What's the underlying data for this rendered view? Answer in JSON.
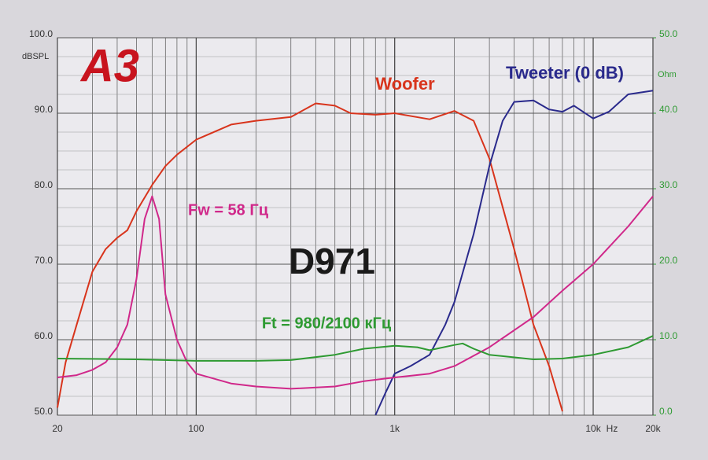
{
  "chart_data": {
    "type": "line",
    "logo": "A3",
    "title": "D971",
    "y_label": "dBSPL",
    "y2_label": "Ohm",
    "x_label": "Hz",
    "xlog": true,
    "grid": true,
    "xlim": [
      20,
      20000
    ],
    "xticks": [
      20,
      100,
      {
        "value": 1000,
        "label": "1k"
      },
      {
        "value": 10000,
        "label": "10k"
      },
      {
        "value": 20000,
        "label": "20k"
      }
    ],
    "ylim": [
      50,
      100
    ],
    "yticks": [
      {
        "value": 50,
        "label": "50.0"
      },
      {
        "value": 60,
        "label": "60.0"
      },
      {
        "value": 70,
        "label": "70.0"
      },
      {
        "value": 80,
        "label": "80.0"
      },
      {
        "value": 90,
        "label": "90.0"
      },
      {
        "value": 100,
        "label": "100.0"
      }
    ],
    "y2lim": [
      0,
      50
    ],
    "y2ticks": [
      {
        "value": 0,
        "label": "0.0"
      },
      {
        "value": 10,
        "label": "10.0"
      },
      {
        "value": 20,
        "label": "20.0"
      },
      {
        "value": 30,
        "label": "30.0"
      },
      {
        "value": 40,
        "label": "40.0"
      },
      {
        "value": 50,
        "label": "50.0"
      }
    ],
    "annotations": [
      "Woofer",
      "Tweeter (0 dB)",
      "Fw = 58 Гц",
      "Ft = 980/2100 кГц"
    ],
    "series": [
      {
        "name": "Woofer",
        "color": "#d8341c",
        "x": [
          20,
          22,
          25,
          30,
          35,
          40,
          45,
          50,
          60,
          70,
          80,
          100,
          150,
          200,
          300,
          400,
          500,
          600,
          800,
          1000,
          1500,
          2000,
          2500,
          3000,
          4000,
          5000,
          6000,
          7000
        ],
        "values": [
          51,
          57,
          62,
          69,
          72,
          73.5,
          74.5,
          77,
          80.5,
          83,
          84.5,
          86.5,
          88.5,
          89,
          89.5,
          91.3,
          91,
          90,
          89.8,
          90,
          89.2,
          90.3,
          89,
          84,
          72,
          62,
          56.5,
          50.5
        ]
      },
      {
        "name": "Tweeter (0 dB)",
        "color": "#2a2a8c",
        "x": [
          800,
          900,
          1000,
          1200,
          1500,
          1800,
          2000,
          2500,
          3000,
          3500,
          4000,
          5000,
          6000,
          7000,
          8000,
          10000,
          12000,
          15000,
          20000
        ],
        "values": [
          50,
          53,
          55.5,
          56.5,
          58,
          62,
          65,
          74,
          83,
          89,
          91.5,
          91.7,
          90.5,
          90.2,
          91,
          89.3,
          90.2,
          92.5,
          93
        ]
      },
      {
        "name": "Fw = 58 Гц",
        "color": "#d0288a",
        "axis": "y2",
        "x": [
          20,
          25,
          30,
          35,
          40,
          45,
          50,
          55,
          60,
          65,
          70,
          80,
          90,
          100,
          150,
          200,
          300,
          500,
          700,
          1000,
          1500,
          2000,
          3000,
          5000,
          7000,
          10000,
          15000,
          20000
        ],
        "values": [
          5,
          5.3,
          6,
          7,
          9,
          12,
          18,
          26,
          29,
          26,
          16,
          10,
          7,
          5.5,
          4.2,
          3.8,
          3.5,
          3.8,
          4.5,
          5,
          5.5,
          6.5,
          9,
          13,
          16.5,
          20,
          25,
          29
        ]
      },
      {
        "name": "Ft = 980/2100 кГц",
        "color": "#2e9a32",
        "axis": "y2",
        "x": [
          20,
          50,
          100,
          200,
          300,
          500,
          700,
          1000,
          1300,
          1500,
          2000,
          2200,
          2500,
          3000,
          5000,
          7000,
          10000,
          15000,
          20000
        ],
        "values": [
          7.5,
          7.4,
          7.2,
          7.2,
          7.3,
          8,
          8.8,
          9.2,
          9,
          8.6,
          9.3,
          9.5,
          8.8,
          8,
          7.4,
          7.5,
          8,
          9,
          10.5
        ]
      }
    ]
  }
}
